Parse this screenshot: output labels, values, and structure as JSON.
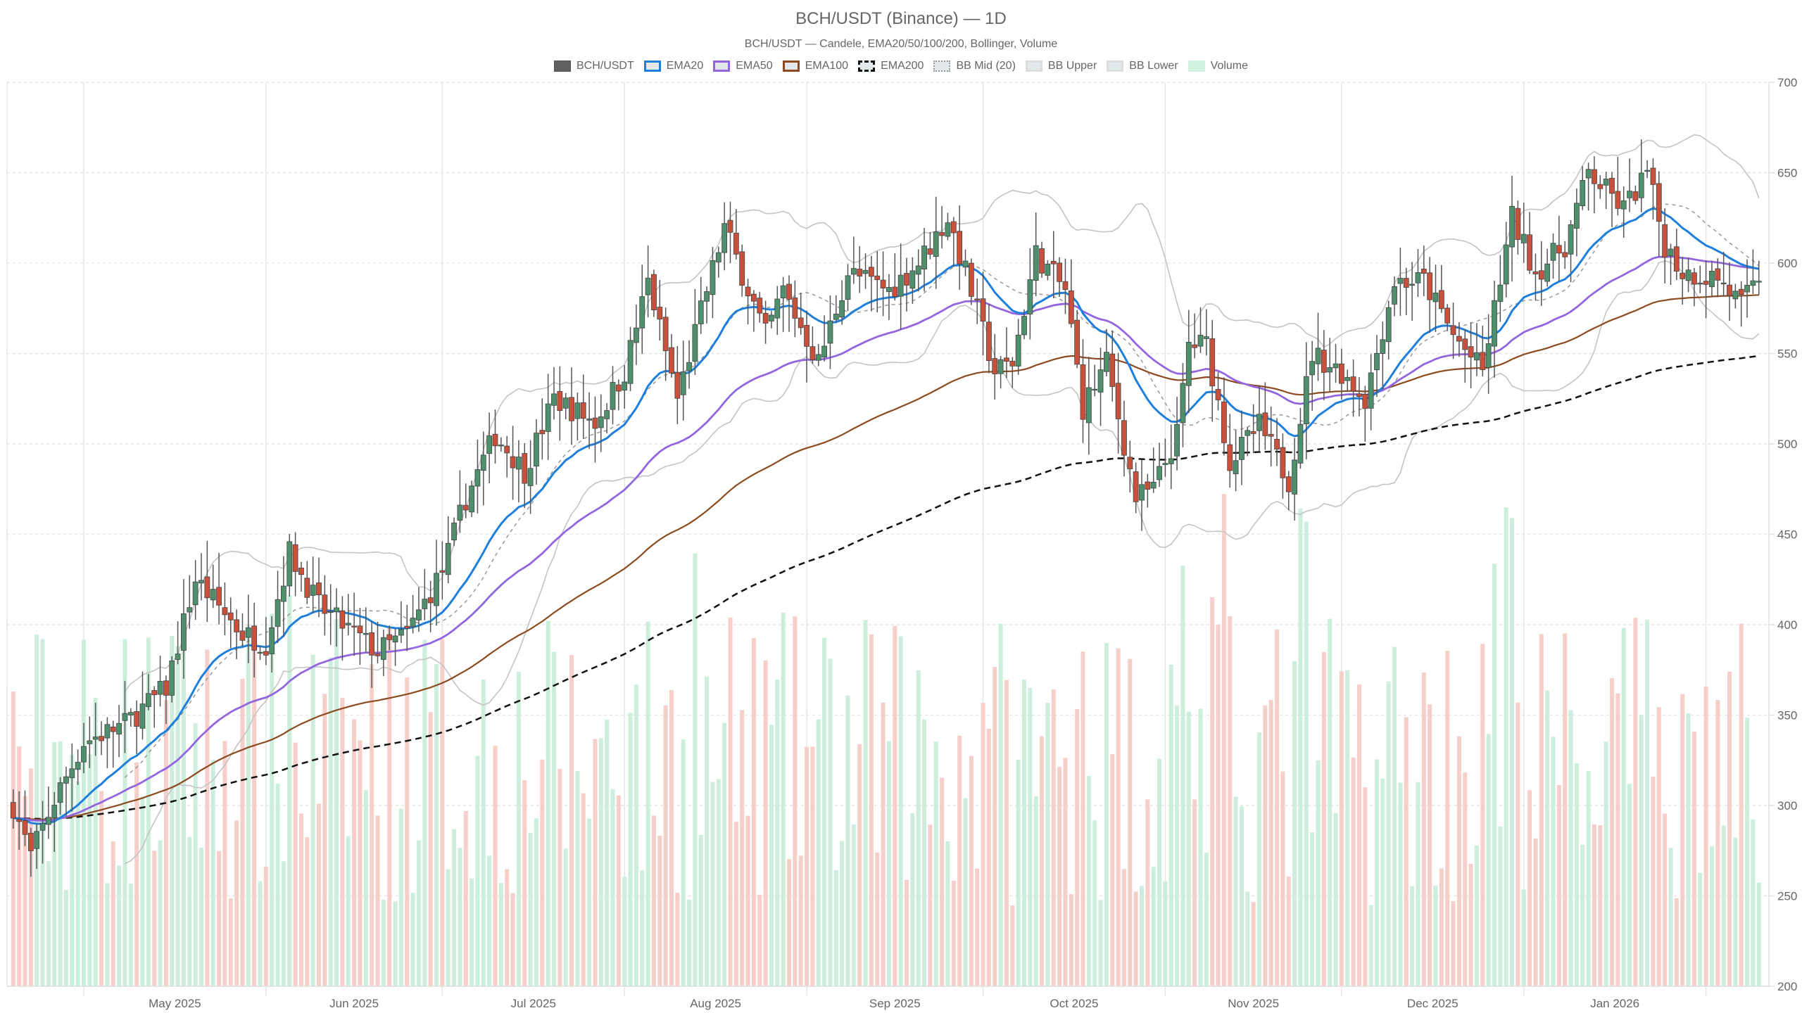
{
  "header": {
    "title": "BCH/USDT (Binance) — 1D",
    "subtitle": "BCH/USDT — Candele, EMA20/50/100/200, Bollinger, Volume"
  },
  "legend": [
    {
      "label": "BCH/USDT",
      "swatch": "solid",
      "color": "#555555",
      "fill": "#606060"
    },
    {
      "label": "EMA20",
      "swatch": "outline",
      "color": "#1e7fdc",
      "fill": "#e3e8ea"
    },
    {
      "label": "EMA50",
      "swatch": "outline",
      "color": "#9366e0",
      "fill": "#e3e8ea"
    },
    {
      "label": "EMA100",
      "swatch": "outline",
      "color": "#8c4a1f",
      "fill": "#e3e8ea"
    },
    {
      "label": "EMA200",
      "swatch": "dashed",
      "color": "#111111",
      "fill": "#e3e8ea"
    },
    {
      "label": "BB Mid (20)",
      "swatch": "dotted",
      "color": "#9a9a9a",
      "fill": "#e3e8ea"
    },
    {
      "label": "BB Upper",
      "swatch": "outline",
      "color": "#dddddd",
      "fill": "#e3e8ea"
    },
    {
      "label": "BB Lower",
      "swatch": "outline",
      "color": "#dddddd",
      "fill": "#e3e8ea"
    },
    {
      "label": "Volume",
      "swatch": "solid",
      "color": "#d2f2e0",
      "fill": "#d2f2e0"
    }
  ],
  "colors": {
    "up": "#4e8f6c",
    "down": "#c9513c",
    "wick": "#555555",
    "vol_up": "#cdeedd",
    "vol_down": "#f7cfca",
    "ema20": "#1e7fdc",
    "ema50": "#9366e0",
    "ema100": "#8c4a1f",
    "ema200": "#111111",
    "bb": "#c4c4c4",
    "bb_mid": "#999999",
    "grid": "#e6e6e6"
  },
  "chart_data": {
    "type": "candlestick",
    "title": "BCH/USDT (Binance) — 1D",
    "subtitle": "BCH/USDT — Candele, EMA20/50/100/200, Bollinger, Volume",
    "xlabel": "",
    "ylabel": "",
    "x_ticks": [
      "May 2025",
      "Jun 2025",
      "Jul 2025",
      "Aug 2025",
      "Sep 2025",
      "Oct 2025",
      "Nov 2025",
      "Dec 2025",
      "Jan 2026"
    ],
    "y_ticks": [
      200,
      250,
      300,
      350,
      400,
      450,
      500,
      550,
      600,
      650,
      700
    ],
    "ylim": [
      200,
      700
    ],
    "y_axis_position": "right",
    "grid": true,
    "legend_position": "top",
    "date_range": [
      "2025-04-19",
      "2026-02-10"
    ],
    "close_keypoints": [
      [
        "2025-04-19",
        300
      ],
      [
        "2025-04-22",
        272
      ],
      [
        "2025-04-26",
        303
      ],
      [
        "2025-05-01",
        335
      ],
      [
        "2025-05-08",
        345
      ],
      [
        "2025-05-15",
        365
      ],
      [
        "2025-05-20",
        425
      ],
      [
        "2025-05-28",
        395
      ],
      [
        "2025-06-01",
        390
      ],
      [
        "2025-06-05",
        440
      ],
      [
        "2025-06-10",
        410
      ],
      [
        "2025-06-20",
        385
      ],
      [
        "2025-06-25",
        395
      ],
      [
        "2025-07-01",
        430
      ],
      [
        "2025-07-05",
        470
      ],
      [
        "2025-07-10",
        505
      ],
      [
        "2025-07-15",
        485
      ],
      [
        "2025-07-20",
        525
      ],
      [
        "2025-07-27",
        512
      ],
      [
        "2025-08-01",
        540
      ],
      [
        "2025-08-05",
        590
      ],
      [
        "2025-08-10",
        525
      ],
      [
        "2025-08-15",
        585
      ],
      [
        "2025-08-18",
        620
      ],
      [
        "2025-08-25",
        560
      ],
      [
        "2025-08-28",
        585
      ],
      [
        "2025-09-03",
        545
      ],
      [
        "2025-09-08",
        595
      ],
      [
        "2025-09-15",
        585
      ],
      [
        "2025-09-20",
        600
      ],
      [
        "2025-09-25",
        625
      ],
      [
        "2025-09-28",
        595
      ],
      [
        "2025-10-03",
        540
      ],
      [
        "2025-10-06",
        545
      ],
      [
        "2025-10-10",
        605
      ],
      [
        "2025-10-15",
        585
      ],
      [
        "2025-10-18",
        520
      ],
      [
        "2025-10-22",
        545
      ],
      [
        "2025-10-27",
        470
      ],
      [
        "2025-10-30",
        475
      ],
      [
        "2025-11-03",
        505
      ],
      [
        "2025-11-05",
        555
      ],
      [
        "2025-11-08",
        555
      ],
      [
        "2025-11-12",
        490
      ],
      [
        "2025-11-17",
        510
      ],
      [
        "2025-11-22",
        480
      ],
      [
        "2025-11-26",
        550
      ],
      [
        "2025-12-01",
        540
      ],
      [
        "2025-12-05",
        525
      ],
      [
        "2025-12-10",
        590
      ],
      [
        "2025-12-15",
        590
      ],
      [
        "2025-12-20",
        560
      ],
      [
        "2025-12-25",
        540
      ],
      [
        "2025-12-30",
        625
      ],
      [
        "2026-01-03",
        595
      ],
      [
        "2026-01-08",
        610
      ],
      [
        "2026-01-12",
        650
      ],
      [
        "2026-01-18",
        630
      ],
      [
        "2026-01-22",
        650
      ],
      [
        "2026-01-25",
        610
      ],
      [
        "2026-01-28",
        595
      ],
      [
        "2026-02-03",
        592
      ],
      [
        "2026-02-07",
        577
      ],
      [
        "2026-02-10",
        590
      ]
    ],
    "ema_end_values": {
      "ema20": 596,
      "ema50": 590,
      "ema100": 575,
      "ema200": 543
    },
    "bb_end_values": {
      "upper": 647,
      "mid": 603,
      "lower": 557
    },
    "volume_scale_note": "Volume bars drawn in lower overlay, green for up days, red for down days"
  }
}
